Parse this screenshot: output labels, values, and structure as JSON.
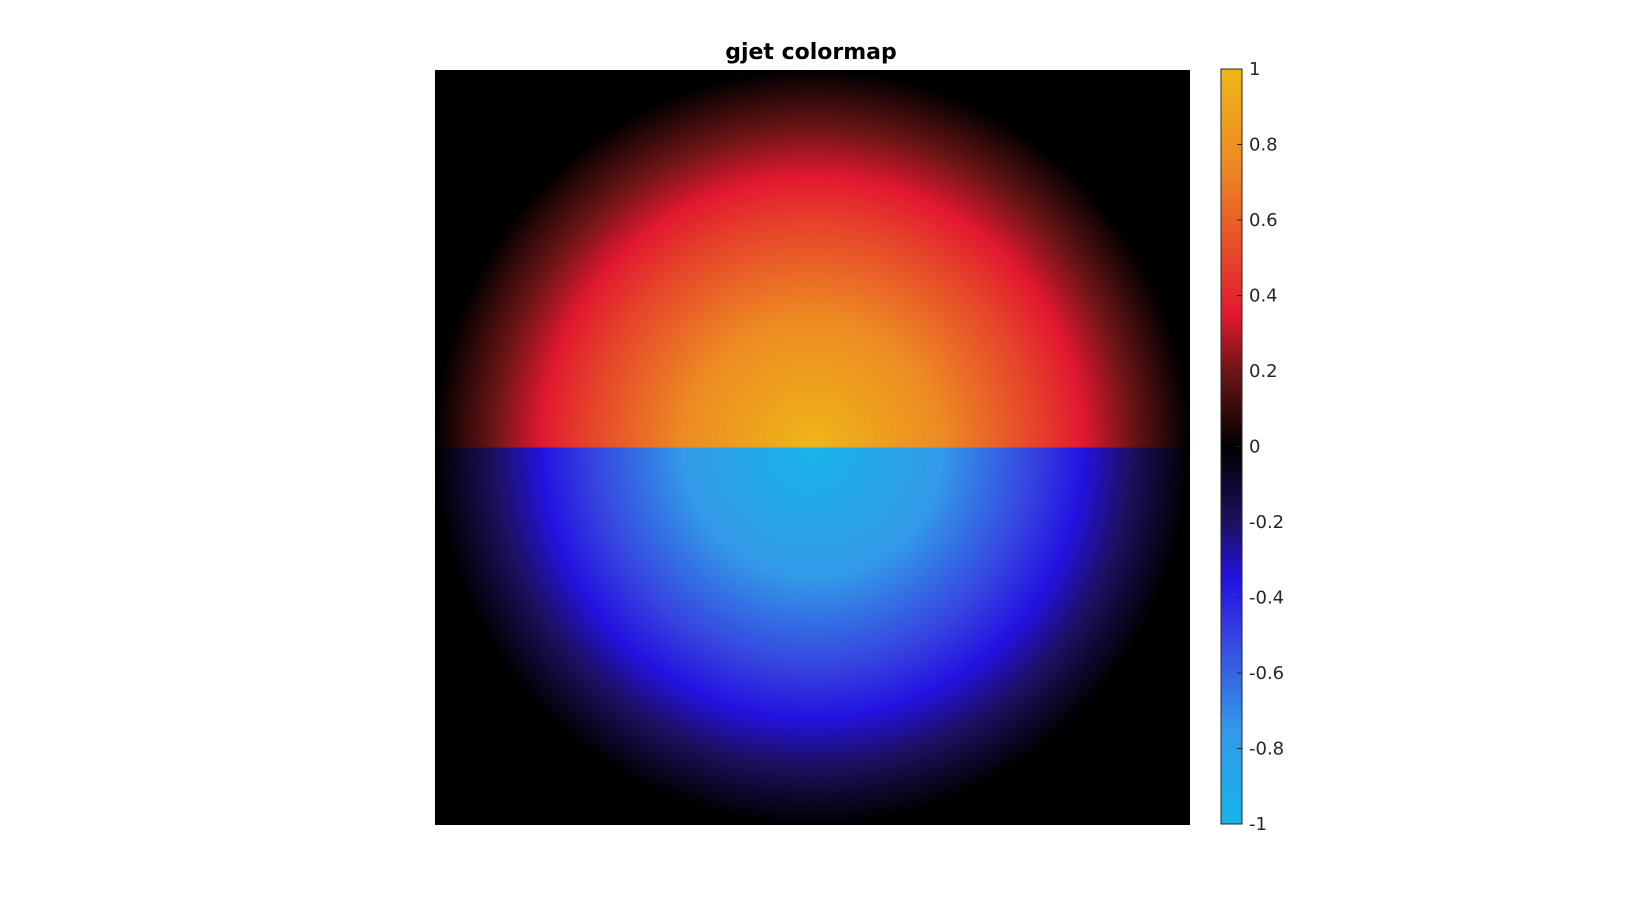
{
  "chart_data": {
    "type": "heatmap",
    "title": "gjet colormap",
    "xlabel": "",
    "ylabel": "",
    "colormap_name": "gjet",
    "clim": [
      -1,
      1
    ],
    "value_field": {
      "description_of_values": "top half positive, bottom half negative, magnitude decays radially from center of the square",
      "center_value_top": 1,
      "center_value_bottom": -1,
      "edge_value": 0
    },
    "colorbar": {
      "orientation": "vertical",
      "location": "right",
      "ticks": [
        1,
        0.8,
        0.6,
        0.4,
        0.2,
        0,
        -0.2,
        -0.4,
        -0.6,
        -0.8,
        -1
      ],
      "tick_labels": [
        "1",
        "0.8",
        "0.6",
        "0.4",
        "0.2",
        "0",
        "-0.2",
        "-0.4",
        "-0.6",
        "-0.8",
        "-1"
      ]
    },
    "colormap_stops": [
      {
        "value": 1.0,
        "color": "#EFB617"
      },
      {
        "value": 0.75,
        "color": "#ED8A23"
      },
      {
        "value": 0.5,
        "color": "#E6452A"
      },
      {
        "value": 0.35,
        "color": "#E21830"
      },
      {
        "value": 0.2,
        "color": "#6E1516"
      },
      {
        "value": 0.0,
        "color": "#000000"
      },
      {
        "value": -0.2,
        "color": "#1D1060"
      },
      {
        "value": -0.35,
        "color": "#2312E0"
      },
      {
        "value": -0.5,
        "color": "#3642E0"
      },
      {
        "value": -0.75,
        "color": "#3399E8"
      },
      {
        "value": -1.0,
        "color": "#17B4E9"
      }
    ],
    "grid": false
  }
}
